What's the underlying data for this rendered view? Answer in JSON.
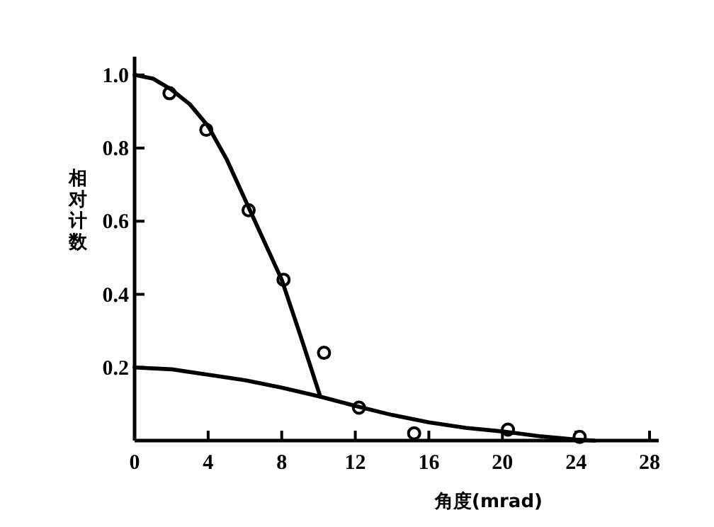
{
  "chart_data": {
    "type": "line",
    "xlabel": "角度(mrad)",
    "ylabel": "相对计数",
    "xlim": [
      0,
      28.5
    ],
    "ylim": [
      0,
      1.05
    ],
    "xticks": [
      0,
      4,
      8,
      12,
      16,
      20,
      24,
      28
    ],
    "yticks": [
      0.2,
      0.4,
      0.6,
      {
        "value": 1.0,
        "label": "1.0"
      },
      0.8
    ],
    "grid": false,
    "series": [
      {
        "type": "scatter",
        "marker": "circle",
        "color": "#000000",
        "x": [
          1.9,
          3.9,
          6.2,
          8.1,
          10.3,
          12.2,
          15.2,
          20.3,
          24.2
        ],
        "values": [
          0.95,
          0.85,
          0.63,
          0.44,
          0.24,
          0.09,
          0.02,
          0.03,
          0.01
        ]
      },
      {
        "marker": "none",
        "color": "#000000",
        "x": [
          0,
          1,
          2,
          3,
          4,
          5,
          6,
          7,
          8,
          9,
          10.1
        ],
        "values": [
          1.0,
          0.99,
          0.96,
          0.92,
          0.86,
          0.77,
          0.66,
          0.55,
          0.44,
          0.29,
          0.12
        ]
      },
      {
        "marker": "none",
        "color": "#000000",
        "x": [
          0,
          2,
          4,
          6,
          8,
          10.1,
          12,
          14,
          16,
          18,
          20,
          22,
          24,
          25
        ],
        "values": [
          0.2,
          0.195,
          0.18,
          0.165,
          0.145,
          0.12,
          0.095,
          0.07,
          0.05,
          0.035,
          0.025,
          0.012,
          0.003,
          0
        ]
      }
    ]
  }
}
